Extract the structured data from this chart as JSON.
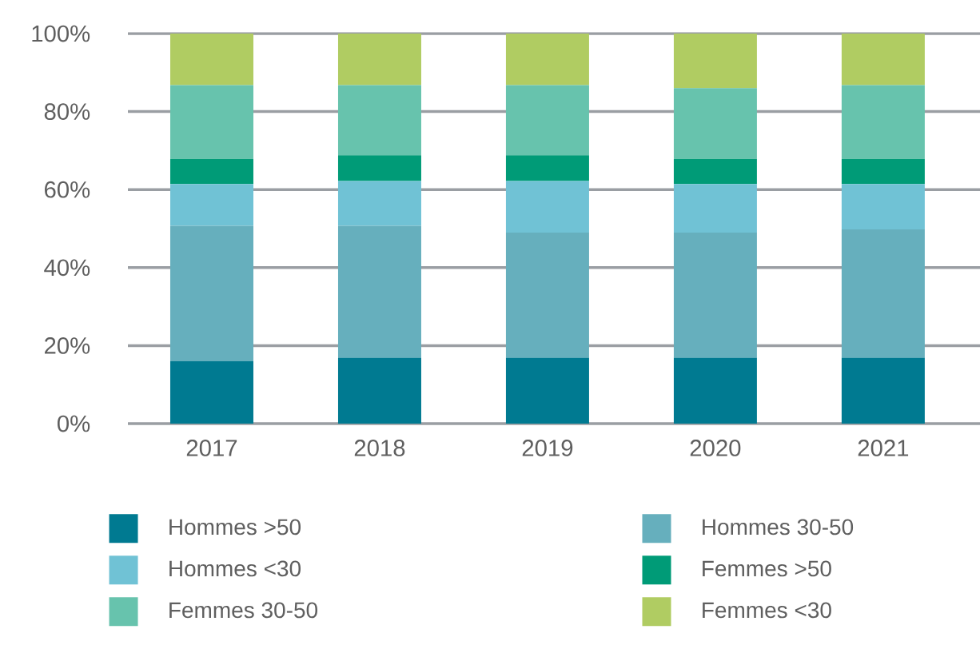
{
  "chart_data": {
    "type": "bar",
    "stacked": true,
    "categories": [
      "2017",
      "2018",
      "2019",
      "2020",
      "2021"
    ],
    "series": [
      {
        "name": "Hommes >50",
        "color": "#007a91",
        "values": [
          16.0,
          16.9,
          16.9,
          16.9,
          16.9
        ]
      },
      {
        "name": "Hommes 30-50",
        "color": "#66afbd",
        "values": [
          34.7,
          33.8,
          32.1,
          32.1,
          32.9
        ]
      },
      {
        "name": "Hommes <30",
        "color": "#70c2d5",
        "values": [
          10.7,
          11.5,
          13.2,
          12.4,
          11.6
        ]
      },
      {
        "name": "Femmes >50",
        "color": "#009b77",
        "values": [
          6.5,
          6.6,
          6.6,
          6.5,
          6.5
        ]
      },
      {
        "name": "Femmes 30-50",
        "color": "#67c3ad",
        "values": [
          18.9,
          18.0,
          18.0,
          18.1,
          18.9
        ]
      },
      {
        "name": "Femmes <30",
        "color": "#b0cc62",
        "values": [
          13.2,
          13.2,
          13.2,
          14.0,
          13.2
        ]
      }
    ],
    "ylim": [
      0,
      100
    ],
    "yticks": [
      {
        "value": 0,
        "label": "0%"
      },
      {
        "value": 20,
        "label": "20%"
      },
      {
        "value": 40,
        "label": "40%"
      },
      {
        "value": 60,
        "label": "60%"
      },
      {
        "value": 80,
        "label": "80%"
      },
      {
        "value": 100,
        "label": "100%"
      }
    ],
    "grid": "y",
    "legend": "bottom"
  }
}
